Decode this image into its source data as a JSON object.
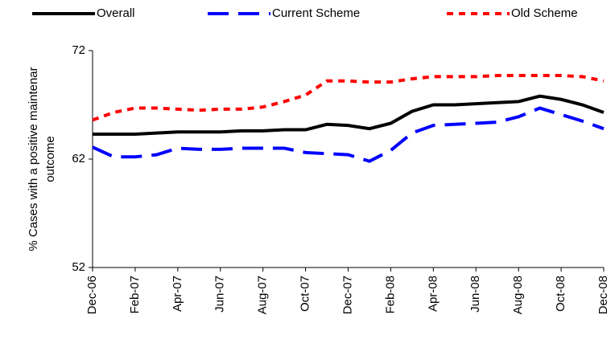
{
  "chart_data": {
    "type": "line",
    "ylabel": [
      "% Cases with a positive maintenar",
      "outcome"
    ],
    "categories": [
      "Dec-06",
      null,
      "Feb-07",
      null,
      "Apr-07",
      null,
      "Jun-07",
      null,
      "Aug-07",
      null,
      "Oct-07",
      null,
      "Dec-07",
      null,
      "Feb-08",
      null,
      "Apr-08",
      null,
      "Jun-08",
      null,
      "Aug-08",
      null,
      "Oct-08",
      null,
      "Dec-08"
    ],
    "series": [
      {
        "name": "Overall",
        "color": "#000000",
        "dash": "solid",
        "values": [
          64.3,
          64.3,
          64.3,
          64.4,
          64.5,
          64.5,
          64.5,
          64.6,
          64.6,
          64.7,
          64.7,
          65.2,
          65.1,
          64.8,
          65.3,
          66.4,
          67.0,
          67.0,
          67.1,
          67.2,
          67.3,
          67.8,
          67.5,
          67.0,
          66.3
        ]
      },
      {
        "name": "Current Scheme",
        "color": "#0000ff",
        "dash": "long",
        "values": [
          63.1,
          62.2,
          62.2,
          62.4,
          63.0,
          62.9,
          62.9,
          63.0,
          63.0,
          63.0,
          62.6,
          62.5,
          62.4,
          61.8,
          62.8,
          64.4,
          65.1,
          65.2,
          65.3,
          65.4,
          65.9,
          66.7,
          66.1,
          65.5,
          64.8
        ]
      },
      {
        "name": "Old Scheme",
        "color": "#ff0000",
        "dash": "short",
        "values": [
          65.6,
          66.3,
          66.7,
          66.7,
          66.6,
          66.5,
          66.6,
          66.6,
          66.8,
          67.3,
          67.9,
          69.2,
          69.2,
          69.1,
          69.1,
          69.4,
          69.6,
          69.6,
          69.6,
          69.7,
          69.7,
          69.7,
          69.7,
          69.6,
          69.2
        ]
      }
    ],
    "ylim": [
      52,
      72
    ],
    "yticks": [
      52,
      62,
      72
    ]
  }
}
